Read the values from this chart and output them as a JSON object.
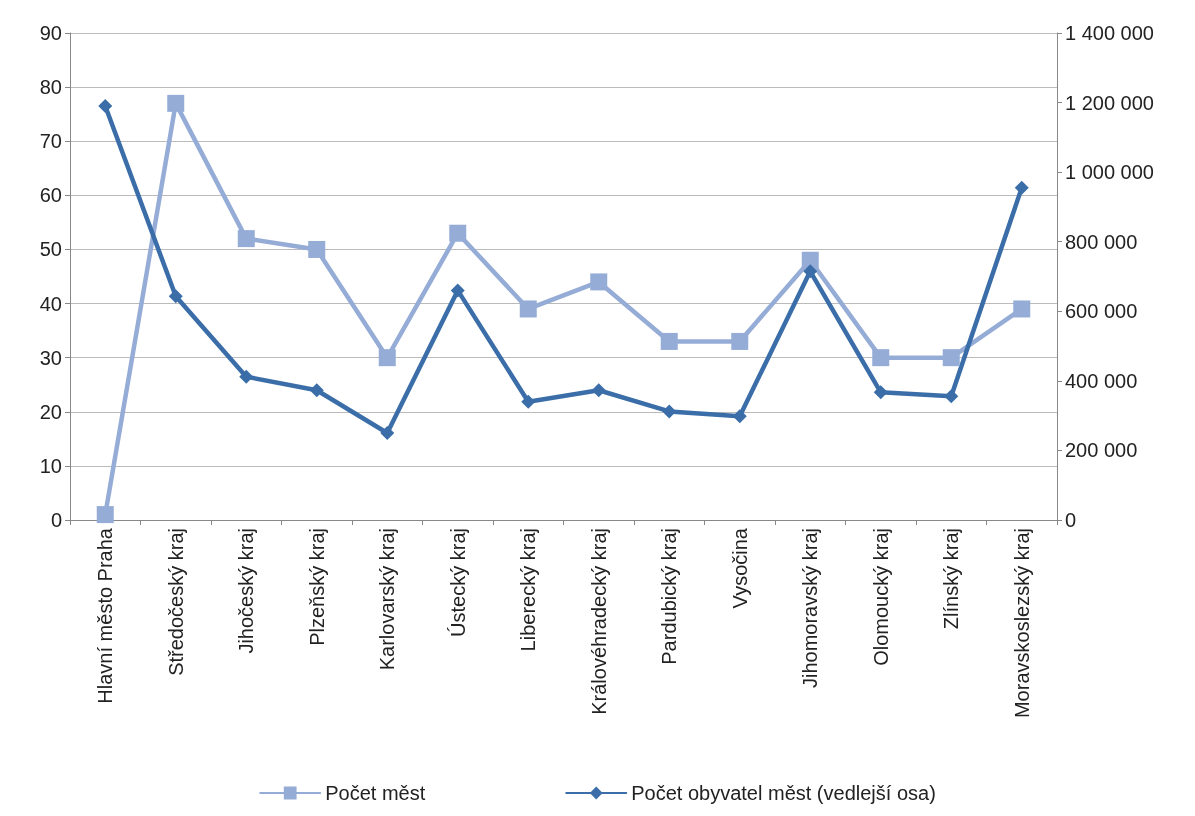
{
  "chart_data": {
    "type": "line",
    "categories": [
      "Hlavní město Praha",
      "Středočeský kraj",
      "Jihočeský kraj",
      "Plzeňský kraj",
      "Karlovarský kraj",
      "Ústecký kraj",
      "Liberecký kraj",
      "Královéhradecký kraj",
      "Pardubický kraj",
      "Vysočina",
      "Jihomoravský kraj",
      "Olomoucký kraj",
      "Zlínský kraj",
      "Moravskoslezský kraj"
    ],
    "series": [
      {
        "name": "Počet měst",
        "color": "#95acd6",
        "marker": "square",
        "values": [
          1,
          77,
          52,
          50,
          30,
          53,
          39,
          44,
          33,
          33,
          48,
          30,
          30,
          39
        ]
      },
      {
        "name": "Počet obyvatel měst (vedlejší osa)",
        "color": "#3b6ea8",
        "marker": "diamond",
        "axis": "y2",
        "values": [
          1190000,
          643000,
          412000,
          373000,
          250000,
          660000,
          340000,
          373000,
          312000,
          298000,
          715000,
          367000,
          356000,
          955000
        ]
      }
    ],
    "ylim": [
      0,
      90
    ],
    "yticks": [
      0,
      10,
      20,
      30,
      40,
      50,
      60,
      70,
      80,
      90
    ],
    "y2lim": [
      0,
      1400000
    ],
    "y2ticks": [
      0,
      {
        "value": 200000,
        "label": "200 000"
      },
      {
        "value": 400000,
        "label": "400 000"
      },
      {
        "value": 600000,
        "label": "600 000"
      },
      {
        "value": 800000,
        "label": "800 000"
      },
      {
        "value": 1000000,
        "label": "1 000 000"
      },
      {
        "value": 1200000,
        "label": "1 200 000"
      },
      {
        "value": 1400000,
        "label": "1 400 000"
      }
    ],
    "grid": "y",
    "legend": "bottom",
    "line_style": "solid"
  }
}
